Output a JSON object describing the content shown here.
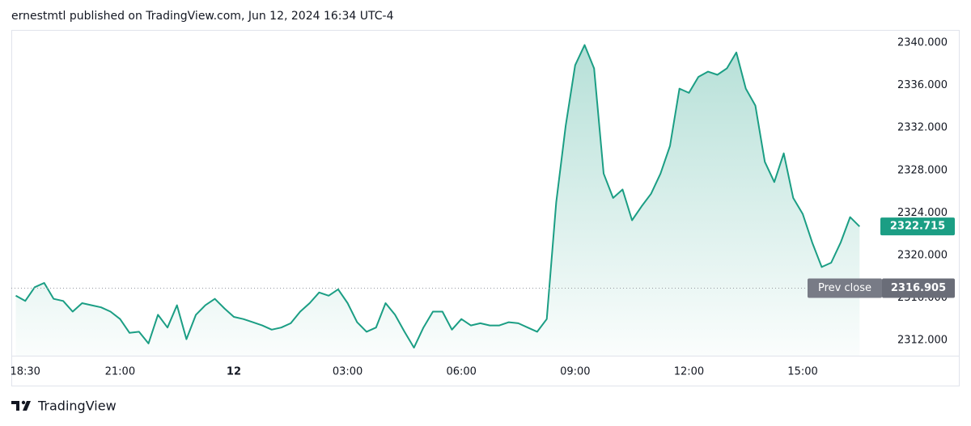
{
  "header": "ernestmtl published on TradingView.com, Jun 12, 2024 16:34 UTC-4",
  "footer": "TradingView",
  "chart_data": {
    "type": "area",
    "color": "#1b9e84",
    "x": [
      "2024-06-11T18:15",
      "2024-06-11T18:30",
      "2024-06-11T18:45",
      "2024-06-11T19:00",
      "2024-06-11T19:15",
      "2024-06-11T19:30",
      "2024-06-11T19:45",
      "2024-06-11T20:00",
      "2024-06-11T20:15",
      "2024-06-11T20:30",
      "2024-06-11T20:45",
      "2024-06-11T21:00",
      "2024-06-11T21:15",
      "2024-06-11T21:30",
      "2024-06-11T21:45",
      "2024-06-11T22:00",
      "2024-06-11T22:15",
      "2024-06-11T22:30",
      "2024-06-11T22:45",
      "2024-06-11T23:00",
      "2024-06-11T23:15",
      "2024-06-11T23:30",
      "2024-06-11T23:45",
      "2024-06-12T00:00",
      "2024-06-12T00:15",
      "2024-06-12T00:30",
      "2024-06-12T00:45",
      "2024-06-12T01:00",
      "2024-06-12T01:15",
      "2024-06-12T01:30",
      "2024-06-12T01:45",
      "2024-06-12T02:00",
      "2024-06-12T02:15",
      "2024-06-12T02:30",
      "2024-06-12T02:45",
      "2024-06-12T03:00",
      "2024-06-12T03:15",
      "2024-06-12T03:30",
      "2024-06-12T03:45",
      "2024-06-12T04:00",
      "2024-06-12T04:15",
      "2024-06-12T04:30",
      "2024-06-12T04:45",
      "2024-06-12T05:00",
      "2024-06-12T05:15",
      "2024-06-12T05:30",
      "2024-06-12T05:45",
      "2024-06-12T06:00",
      "2024-06-12T06:15",
      "2024-06-12T06:30",
      "2024-06-12T06:45",
      "2024-06-12T07:00",
      "2024-06-12T07:15",
      "2024-06-12T07:30",
      "2024-06-12T07:45",
      "2024-06-12T08:00",
      "2024-06-12T08:15",
      "2024-06-12T08:30",
      "2024-06-12T08:45",
      "2024-06-12T09:00",
      "2024-06-12T09:15",
      "2024-06-12T09:30",
      "2024-06-12T09:45",
      "2024-06-12T10:00",
      "2024-06-12T10:15",
      "2024-06-12T10:30",
      "2024-06-12T10:45",
      "2024-06-12T11:00",
      "2024-06-12T11:15",
      "2024-06-12T11:30",
      "2024-06-12T11:45",
      "2024-06-12T12:00",
      "2024-06-12T12:15",
      "2024-06-12T12:30",
      "2024-06-12T12:45",
      "2024-06-12T13:00",
      "2024-06-12T13:15",
      "2024-06-12T13:30",
      "2024-06-12T13:45",
      "2024-06-12T14:00",
      "2024-06-12T14:15",
      "2024-06-12T14:30",
      "2024-06-12T14:45",
      "2024-06-12T15:00",
      "2024-06-12T15:15",
      "2024-06-12T15:30",
      "2024-06-12T15:45",
      "2024-06-12T16:00",
      "2024-06-12T16:15",
      "2024-06-12T16:30"
    ],
    "values": [
      2316.2,
      2315.7,
      2317.0,
      2317.4,
      2315.9,
      2315.7,
      2314.7,
      2315.5,
      2315.3,
      2315.1,
      2314.7,
      2314.0,
      2312.7,
      2312.8,
      2311.7,
      2314.4,
      2313.2,
      2315.3,
      2312.1,
      2314.4,
      2315.3,
      2315.9,
      2315.0,
      2314.2,
      2314.0,
      2313.7,
      2313.4,
      2313.0,
      2313.2,
      2313.6,
      2314.7,
      2315.5,
      2316.5,
      2316.2,
      2316.8,
      2315.5,
      2313.7,
      2312.8,
      2313.2,
      2315.5,
      2314.4,
      2312.8,
      2311.3,
      2313.2,
      2314.7,
      2314.7,
      2313.0,
      2314.0,
      2313.4,
      2313.6,
      2313.4,
      2313.4,
      2313.7,
      2313.6,
      2313.2,
      2312.8,
      2314.0,
      2325.0,
      2332.2,
      2337.9,
      2339.8,
      2337.6,
      2327.7,
      2325.4,
      2326.2,
      2323.3,
      2324.6,
      2325.8,
      2327.7,
      2330.3,
      2335.7,
      2335.3,
      2336.8,
      2337.3,
      2337.0,
      2337.6,
      2339.1,
      2335.7,
      2334.1,
      2328.8,
      2326.9,
      2329.6,
      2325.4,
      2323.9,
      2321.2,
      2318.9,
      2319.3,
      2321.2,
      2323.6,
      2322.715
    ],
    "xlim": [
      "2024-06-11T18:08",
      "2024-06-12T16:59"
    ],
    "xticks": [
      {
        "value": "2024-06-11T18:30",
        "label": "18:30"
      },
      {
        "value": "2024-06-11T21:00",
        "label": "21:00"
      },
      {
        "value": "2024-06-12T00:00",
        "label": "12"
      },
      {
        "value": "2024-06-12T03:00",
        "label": "03:00"
      },
      {
        "value": "2024-06-12T06:00",
        "label": "06:00"
      },
      {
        "value": "2024-06-12T09:00",
        "label": "09:00"
      },
      {
        "value": "2024-06-12T12:00",
        "label": "12:00"
      },
      {
        "value": "2024-06-12T15:00",
        "label": "15:00"
      }
    ],
    "ylim": [
      2310.55,
      2341.15
    ],
    "yticks": [
      {
        "value": 2312,
        "label": "2312.000"
      },
      {
        "value": 2316,
        "label": "2316.000"
      },
      {
        "value": 2320,
        "label": "2320.000"
      },
      {
        "value": 2324,
        "label": "2324.000"
      },
      {
        "value": 2328,
        "label": "2328.000"
      },
      {
        "value": 2332,
        "label": "2332.000"
      },
      {
        "value": 2336,
        "label": "2336.000"
      },
      {
        "value": 2340,
        "label": "2340.000"
      }
    ],
    "grid": false,
    "last_price": 2322.715,
    "prev_close_label": "Prev close",
    "prev_close": 2316.905
  }
}
